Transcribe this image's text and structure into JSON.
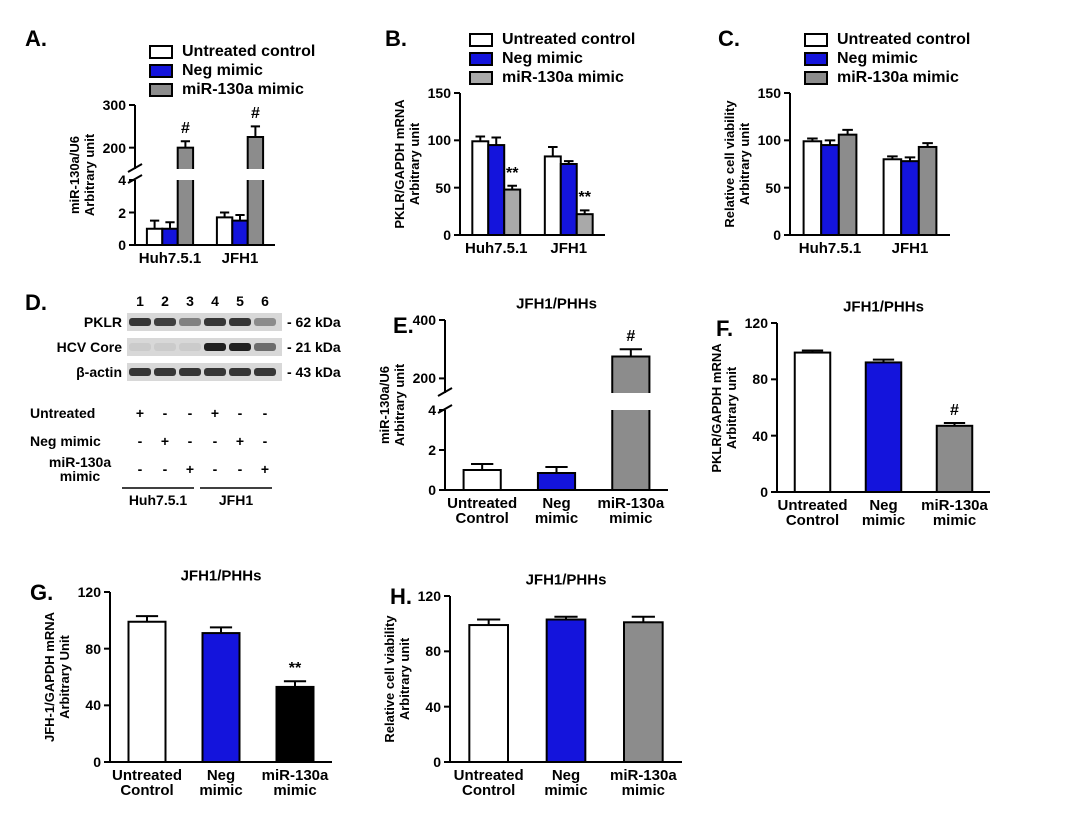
{
  "chart_data": [
    {
      "type": "bar",
      "label": "A.",
      "ylabel": "miR-130a/U6\nArbitrary unit",
      "legend": "above",
      "categories": [
        "Huh7.5.1",
        "JFH1"
      ],
      "series": [
        {
          "name": "Untreated control",
          "color": "#ffffff",
          "values": [
            1.0,
            1.7
          ],
          "errors": [
            0.5,
            0.3
          ]
        },
        {
          "name": "Neg mimic",
          "color": "#1414dc",
          "values": [
            1.0,
            1.5
          ],
          "errors": [
            0.4,
            0.35
          ]
        },
        {
          "name": "miR-130a mimic",
          "color": "#8c8c8c",
          "values": [
            200,
            225
          ],
          "errors": [
            15,
            25
          ]
        }
      ],
      "annotations": [
        {
          "text": "#",
          "series": 2,
          "category": 0
        },
        {
          "text": "#",
          "series": 2,
          "category": 1
        }
      ],
      "ylim": [
        0,
        300
      ],
      "ybreak": [
        4,
        150
      ],
      "yticks": [
        0,
        2,
        4,
        200,
        300
      ]
    },
    {
      "type": "bar",
      "label": "B.",
      "ylabel": "PKLR/GAPDH mRNA\nArbitrary unit",
      "legend": "above",
      "categories": [
        "Huh7.5.1",
        "JFH1"
      ],
      "series": [
        {
          "name": "Untreated control",
          "color": "#ffffff",
          "values": [
            99,
            83
          ],
          "errors": [
            5,
            10
          ]
        },
        {
          "name": "Neg mimic",
          "color": "#1414dc",
          "values": [
            95,
            75
          ],
          "errors": [
            8,
            3
          ]
        },
        {
          "name": "miR-130a mimic",
          "color": "#a9a9a9",
          "values": [
            48,
            22
          ],
          "errors": [
            4,
            4
          ]
        }
      ],
      "annotations": [
        {
          "text": "**",
          "series": 2,
          "category": 0
        },
        {
          "text": "**",
          "series": 2,
          "category": 1
        }
      ],
      "ylim": [
        0,
        150
      ],
      "yticks": [
        0,
        50,
        100,
        150
      ]
    },
    {
      "type": "bar",
      "label": "C.",
      "ylabel": "Relative cell viability\nArbitrary unit",
      "legend": "above",
      "categories": [
        "Huh7.5.1",
        "JFH1"
      ],
      "series": [
        {
          "name": "Untreated control",
          "color": "#ffffff",
          "values": [
            99,
            80
          ],
          "errors": [
            3,
            3
          ]
        },
        {
          "name": "Neg mimic",
          "color": "#1414dc",
          "values": [
            95,
            78
          ],
          "errors": [
            5,
            4
          ]
        },
        {
          "name": "miR-130a mimic",
          "color": "#8c8c8c",
          "values": [
            106,
            93
          ],
          "errors": [
            5,
            4
          ]
        }
      ],
      "ylim": [
        0,
        150
      ],
      "yticks": [
        0,
        50,
        100,
        150
      ]
    },
    {
      "type": "bar",
      "label": "E.",
      "title": "JFH1/PHHs",
      "ylabel": "miR-130a/U6\nArbitrary unit",
      "categories": [
        "Untreated\nControl",
        "Neg\nmimic",
        "miR-130a\nmimic"
      ],
      "values": [
        1.0,
        0.85,
        275
      ],
      "errors": [
        0.3,
        0.3,
        25
      ],
      "colors": [
        "#ffffff",
        "#1414dc",
        "#8c8c8c"
      ],
      "annotations": [
        {
          "text": "#",
          "index": 2
        }
      ],
      "ylim": [
        0,
        400
      ],
      "ybreak": [
        4,
        150
      ],
      "yticks": [
        0,
        2,
        4,
        200,
        400
      ]
    },
    {
      "type": "bar",
      "label": "F.",
      "title": "JFH1/PHHs",
      "ylabel": "PKLR/GAPDH mRNA\nArbitrary unit",
      "categories": [
        "Untreated\nControl",
        "Neg\nmimic",
        "miR-130a\nmimic"
      ],
      "values": [
        99,
        92,
        47
      ],
      "errors": [
        1.5,
        2,
        2
      ],
      "colors": [
        "#ffffff",
        "#1414dc",
        "#8c8c8c"
      ],
      "annotations": [
        {
          "text": "#",
          "index": 2
        }
      ],
      "ylim": [
        0,
        120
      ],
      "yticks": [
        0,
        40,
        80,
        120
      ]
    },
    {
      "type": "bar",
      "label": "G.",
      "title": "JFH1/PHHs",
      "ylabel": "JFH-1/GAPDH mRNA\nArbitrary Unit",
      "categories": [
        "Untreated\nControl",
        "Neg\nmimic",
        "miR-130a\nmimic"
      ],
      "values": [
        99,
        91,
        53
      ],
      "errors": [
        4,
        4,
        4
      ],
      "colors": [
        "#ffffff",
        "#1414dc",
        "#000000"
      ],
      "annotations": [
        {
          "text": "**",
          "index": 2
        }
      ],
      "ylim": [
        0,
        120
      ],
      "yticks": [
        0,
        40,
        80,
        120
      ]
    },
    {
      "type": "bar",
      "label": "H.",
      "title": "JFH1/PHHs",
      "ylabel": "Relative cell viability\nArbitrary unit",
      "categories": [
        "Untreated\nControl",
        "Neg\nmimic",
        "miR-130a\nmimic"
      ],
      "values": [
        99,
        103,
        101
      ],
      "errors": [
        4,
        2,
        4
      ],
      "colors": [
        "#ffffff",
        "#1414dc",
        "#8c8c8c"
      ],
      "ylim": [
        0,
        120
      ],
      "yticks": [
        0,
        40,
        80,
        120
      ]
    }
  ],
  "blot": {
    "label": "D.",
    "lanes": [
      "1",
      "2",
      "3",
      "4",
      "5",
      "6"
    ],
    "proteins": [
      {
        "name": "PKLR",
        "size": "- 62 kDa"
      },
      {
        "name": "HCV Core",
        "size": "- 21 kDa"
      },
      {
        "name": "β-actin",
        "size": "- 43 kDa"
      }
    ],
    "treatments": [
      {
        "name": "Untreated",
        "signs": [
          "+",
          "-",
          "-",
          "+",
          "-",
          "-"
        ]
      },
      {
        "name": "Neg mimic",
        "signs": [
          "-",
          "+",
          "-",
          "-",
          "+",
          "-"
        ]
      },
      {
        "name": "miR-130a\nmimic",
        "signs": [
          "-",
          "-",
          "+",
          "-",
          "-",
          "+"
        ]
      }
    ],
    "groups": [
      "Huh7.5.1",
      "JFH1"
    ]
  }
}
